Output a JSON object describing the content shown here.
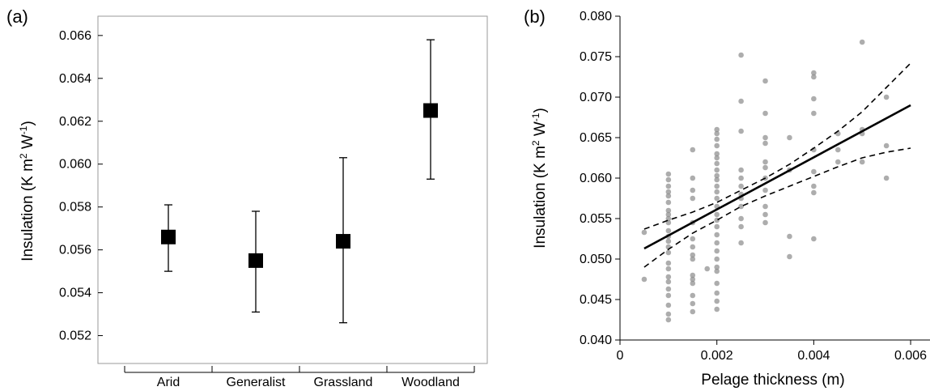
{
  "chart_data": [
    {
      "type": "scatter",
      "panel_label": "(a)",
      "title": "",
      "xlabel": "",
      "ylabel": "Insulation (K m² W⁻¹)",
      "ylabel_parts": {
        "base": "Insulation (K m",
        "sup1": "2",
        "mid": " W",
        "sup2": "-1",
        "end": ")"
      },
      "categories": [
        "Arid",
        "Generalist",
        "Grassland",
        "Woodland"
      ],
      "series": [
        {
          "values": [
            0.0566,
            0.0555,
            0.0564,
            0.0625
          ],
          "error_low": [
            0.055,
            0.0531,
            0.0526,
            0.0593
          ],
          "error_high": [
            0.0581,
            0.0578,
            0.0603,
            0.0658
          ]
        }
      ],
      "ylim": [
        0.0507,
        0.0669
      ],
      "yticks": [
        "0.052",
        "0.054",
        "0.056",
        "0.058",
        "0.060",
        "0.062",
        "0.064",
        "0.066"
      ],
      "grid": false,
      "legend": "none"
    },
    {
      "type": "scatter",
      "panel_label": "(b)",
      "title": "",
      "xlabel": "Pelage thickness (m)",
      "ylabel": "Insulation (K m² W⁻¹)",
      "ylabel_parts": {
        "base": "Insulation (K m",
        "sup1": "2",
        "mid": " W",
        "sup2": "-1",
        "end": ")"
      },
      "xlim": [
        0,
        0.0064
      ],
      "ylim": [
        0.04,
        0.08
      ],
      "xticks": [
        "0",
        "0.002",
        "0.004",
        "0.006"
      ],
      "yticks": [
        "0.040",
        "0.045",
        "0.050",
        "0.055",
        "0.060",
        "0.065",
        "0.070",
        "0.075",
        "0.080"
      ],
      "grid": false,
      "legend": "none",
      "points": {
        "x": [
          0.0005,
          0.0005,
          0.001,
          0.001,
          0.001,
          0.001,
          0.001,
          0.001,
          0.001,
          0.001,
          0.001,
          0.001,
          0.001,
          0.001,
          0.001,
          0.001,
          0.001,
          0.001,
          0.001,
          0.001,
          0.001,
          0.001,
          0.001,
          0.001,
          0.001,
          0.001,
          0.0015,
          0.0015,
          0.0015,
          0.0015,
          0.0015,
          0.0015,
          0.0015,
          0.0015,
          0.0015,
          0.0015,
          0.0015,
          0.0015,
          0.0015,
          0.0015,
          0.0015,
          0.0018,
          0.002,
          0.002,
          0.002,
          0.002,
          0.002,
          0.002,
          0.002,
          0.002,
          0.002,
          0.002,
          0.002,
          0.002,
          0.002,
          0.002,
          0.002,
          0.002,
          0.002,
          0.002,
          0.002,
          0.002,
          0.002,
          0.002,
          0.002,
          0.002,
          0.002,
          0.002,
          0.002,
          0.0025,
          0.0025,
          0.0025,
          0.0025,
          0.0025,
          0.0025,
          0.0025,
          0.0025,
          0.0025,
          0.0025,
          0.0025,
          0.0025,
          0.003,
          0.003,
          0.003,
          0.003,
          0.003,
          0.003,
          0.003,
          0.003,
          0.003,
          0.003,
          0.003,
          0.0035,
          0.0035,
          0.0035,
          0.0035,
          0.004,
          0.004,
          0.004,
          0.004,
          0.004,
          0.004,
          0.004,
          0.004,
          0.004,
          0.0045,
          0.0045,
          0.0045,
          0.005,
          0.005,
          0.005,
          0.005,
          0.0055,
          0.0055,
          0.0055
        ],
        "y": [
          0.0475,
          0.0533,
          0.0425,
          0.0432,
          0.0443,
          0.0455,
          0.0463,
          0.0472,
          0.0478,
          0.0488,
          0.0495,
          0.0508,
          0.0515,
          0.0522,
          0.0528,
          0.0535,
          0.0545,
          0.055,
          0.0555,
          0.056,
          0.057,
          0.0578,
          0.0583,
          0.059,
          0.0598,
          0.0605,
          0.0435,
          0.0445,
          0.0455,
          0.047,
          0.0475,
          0.048,
          0.05,
          0.0505,
          0.0515,
          0.0525,
          0.0545,
          0.0575,
          0.0585,
          0.06,
          0.0635,
          0.0488,
          0.0438,
          0.0448,
          0.0458,
          0.047,
          0.0485,
          0.049,
          0.05,
          0.051,
          0.052,
          0.053,
          0.054,
          0.0548,
          0.0555,
          0.0565,
          0.0575,
          0.0583,
          0.059,
          0.0598,
          0.0603,
          0.061,
          0.0618,
          0.0625,
          0.063,
          0.064,
          0.0648,
          0.0655,
          0.066,
          0.052,
          0.054,
          0.055,
          0.0565,
          0.0575,
          0.058,
          0.059,
          0.06,
          0.061,
          0.0658,
          0.0695,
          0.0752,
          0.0545,
          0.0555,
          0.0565,
          0.0585,
          0.06,
          0.0613,
          0.062,
          0.0643,
          0.065,
          0.068,
          0.072,
          0.0503,
          0.0528,
          0.061,
          0.065,
          0.0525,
          0.0582,
          0.059,
          0.0608,
          0.0635,
          0.068,
          0.0698,
          0.0725,
          0.073,
          0.062,
          0.0635,
          0.0655,
          0.062,
          0.0655,
          0.066,
          0.0768,
          0.06,
          0.064,
          0.07
        ]
      },
      "fit_line": {
        "x": [
          0.0005,
          0.006
        ],
        "y": [
          0.0513,
          0.069
        ]
      },
      "confidence_upper": {
        "x": [
          0.0005,
          0.001,
          0.0015,
          0.002,
          0.0025,
          0.003,
          0.0035,
          0.004,
          0.0045,
          0.005,
          0.0055,
          0.006
        ],
        "y": [
          0.0537,
          0.0548,
          0.0558,
          0.057,
          0.0585,
          0.06,
          0.0617,
          0.0637,
          0.0658,
          0.0682,
          0.0712,
          0.0742
        ]
      },
      "confidence_lower": {
        "x": [
          0.0005,
          0.001,
          0.0015,
          0.002,
          0.0025,
          0.003,
          0.0035,
          0.004,
          0.0045,
          0.005,
          0.0055,
          0.006
        ],
        "y": [
          0.049,
          0.0512,
          0.0532,
          0.0548,
          0.0565,
          0.0578,
          0.059,
          0.0602,
          0.0614,
          0.0625,
          0.0632,
          0.0637
        ]
      }
    }
  ]
}
